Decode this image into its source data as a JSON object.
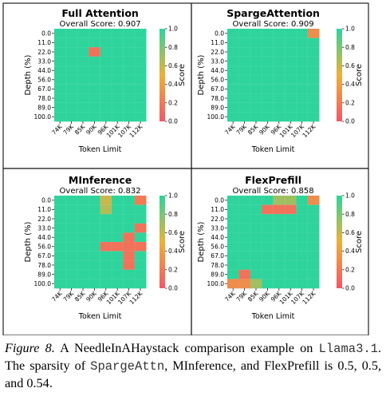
{
  "colorscale": {
    "low": "#f25767",
    "mid": "#ecb13a",
    "high": "#2ed49c"
  },
  "panel_border_color": "#222222",
  "chart_data": [
    {
      "type": "heatmap",
      "title": "Full Attention",
      "subtitle": "Overall Score: 0.907",
      "xlabel": "Token Limit",
      "ylabel": "Depth (%)",
      "x": [
        "74K",
        "79K",
        "85K",
        "90K",
        "96K",
        "101K",
        "107K",
        "112K"
      ],
      "y": [
        "0.0",
        "11.0",
        "22.0",
        "33.0",
        "44.0",
        "56.0",
        "67.0",
        "78.0",
        "89.0",
        "100.0"
      ],
      "colorbar": {
        "label": "Score",
        "ticks": [
          "0.0",
          "0.2",
          "0.4",
          "0.6",
          "0.8",
          "1.0"
        ],
        "range": [
          0,
          1
        ]
      },
      "values": [
        [
          1,
          1,
          1,
          1,
          1,
          1,
          1,
          1
        ],
        [
          1,
          1,
          1,
          1,
          1,
          1,
          1,
          1
        ],
        [
          1,
          1,
          1,
          0.15,
          1,
          1,
          1,
          1
        ],
        [
          1,
          1,
          1,
          1,
          1,
          1,
          1,
          1
        ],
        [
          1,
          1,
          1,
          1,
          1,
          1,
          1,
          1
        ],
        [
          1,
          1,
          1,
          1,
          1,
          1,
          1,
          1
        ],
        [
          1,
          1,
          1,
          1,
          1,
          1,
          1,
          1
        ],
        [
          1,
          1,
          1,
          1,
          1,
          1,
          1,
          1
        ],
        [
          1,
          1,
          1,
          1,
          1,
          1,
          1,
          1
        ],
        [
          1,
          1,
          1,
          1,
          1,
          1,
          1,
          1
        ]
      ]
    },
    {
      "type": "heatmap",
      "title": "SpargeAttention",
      "subtitle": "Overall Score: 0.909",
      "xlabel": "Token Limit",
      "ylabel": "Depth (%)",
      "x": [
        "74K",
        "79K",
        "85K",
        "90K",
        "96K",
        "101K",
        "107K",
        "112K"
      ],
      "y": [
        "0.0",
        "11.0",
        "22.0",
        "33.0",
        "44.0",
        "56.0",
        "67.0",
        "78.0",
        "89.0",
        "100.0"
      ],
      "colorbar": {
        "label": "Score",
        "ticks": [
          "0.0",
          "0.2",
          "0.4",
          "0.6",
          "0.8",
          "1.0"
        ],
        "range": [
          0,
          1
        ]
      },
      "values": [
        [
          1,
          1,
          1,
          1,
          1,
          1,
          1,
          0.3
        ],
        [
          1,
          1,
          1,
          1,
          1,
          1,
          1,
          1
        ],
        [
          1,
          1,
          1,
          1,
          1,
          1,
          1,
          1
        ],
        [
          1,
          1,
          1,
          1,
          1,
          1,
          1,
          1
        ],
        [
          1,
          1,
          1,
          1,
          1,
          1,
          1,
          1
        ],
        [
          1,
          1,
          1,
          1,
          1,
          1,
          1,
          1
        ],
        [
          1,
          1,
          1,
          1,
          1,
          1,
          1,
          1
        ],
        [
          1,
          1,
          1,
          1,
          1,
          1,
          1,
          1
        ],
        [
          1,
          1,
          1,
          1,
          1,
          1,
          1,
          1
        ],
        [
          1,
          1,
          1,
          1,
          1,
          1,
          1,
          1
        ]
      ]
    },
    {
      "type": "heatmap",
      "title": "MInference",
      "subtitle": "Overall Score: 0.832",
      "xlabel": "Token Limit",
      "ylabel": "Depth (%)",
      "x": [
        "74K",
        "79K",
        "85K",
        "90K",
        "96K",
        "101K",
        "107K",
        "112K"
      ],
      "y": [
        "0.0",
        "11.0",
        "22.0",
        "33.0",
        "44.0",
        "56.0",
        "67.0",
        "78.0",
        "89.0",
        "100.0"
      ],
      "colorbar": {
        "label": "Score",
        "ticks": [
          "0.0",
          "0.2",
          "0.4",
          "0.6",
          "0.8",
          "1.0"
        ],
        "range": [
          0,
          1
        ]
      },
      "values": [
        [
          1,
          1,
          1,
          1,
          0.6,
          1,
          1,
          0.2
        ],
        [
          1,
          1,
          1,
          1,
          0.65,
          1,
          1,
          1
        ],
        [
          1,
          1,
          1,
          1,
          1,
          1,
          1,
          1
        ],
        [
          1,
          1,
          1,
          1,
          1,
          1,
          1,
          0.15
        ],
        [
          1,
          1,
          1,
          1,
          1,
          1,
          0.15,
          1
        ],
        [
          1,
          1,
          1,
          1,
          0.15,
          0.15,
          0.15,
          0.15
        ],
        [
          1,
          1,
          1,
          1,
          1,
          1,
          0.15,
          1
        ],
        [
          1,
          1,
          1,
          1,
          1,
          1,
          0.15,
          1
        ],
        [
          1,
          1,
          1,
          1,
          1,
          1,
          1,
          1
        ],
        [
          1,
          1,
          1,
          1,
          1,
          1,
          1,
          1
        ]
      ]
    },
    {
      "type": "heatmap",
      "title": "FlexPrefill",
      "subtitle": "Overall Score: 0.858",
      "xlabel": "Token Limit",
      "ylabel": "Depth (%)",
      "x": [
        "74K",
        "79K",
        "85K",
        "90K",
        "96K",
        "101K",
        "107K",
        "112K"
      ],
      "y": [
        "0.0",
        "11.0",
        "22.0",
        "33.0",
        "44.0",
        "56.0",
        "67.0",
        "78.0",
        "89.0",
        "100.0"
      ],
      "colorbar": {
        "label": "Score",
        "ticks": [
          "0.0",
          "0.2",
          "0.4",
          "0.6",
          "0.8",
          "1.0"
        ],
        "range": [
          0,
          1
        ]
      },
      "values": [
        [
          1,
          1,
          1,
          1,
          0.7,
          0.7,
          1,
          0.3
        ],
        [
          1,
          1,
          1,
          0.15,
          0.15,
          0.15,
          1,
          1
        ],
        [
          1,
          1,
          1,
          1,
          1,
          1,
          1,
          1
        ],
        [
          1,
          1,
          1,
          1,
          1,
          1,
          1,
          1
        ],
        [
          1,
          1,
          1,
          1,
          1,
          1,
          1,
          1
        ],
        [
          1,
          1,
          1,
          1,
          1,
          1,
          1,
          1
        ],
        [
          1,
          1,
          1,
          1,
          1,
          1,
          1,
          1
        ],
        [
          1,
          1,
          1,
          1,
          1,
          1,
          1,
          1
        ],
        [
          1,
          0.15,
          1,
          1,
          1,
          1,
          1,
          1
        ],
        [
          0.3,
          0.3,
          0.7,
          1,
          1,
          1,
          1,
          1
        ]
      ]
    }
  ],
  "caption": {
    "label": "Figure 8.",
    "text_1": "A NeedleInAHaystack comparison example on",
    "model": "Llama3.1",
    "text_2": ". The sparsity of",
    "method": "SpargeAttn",
    "text_3": ", MInference, and FlexPrefill is 0.5, 0.5, and 0.54."
  }
}
